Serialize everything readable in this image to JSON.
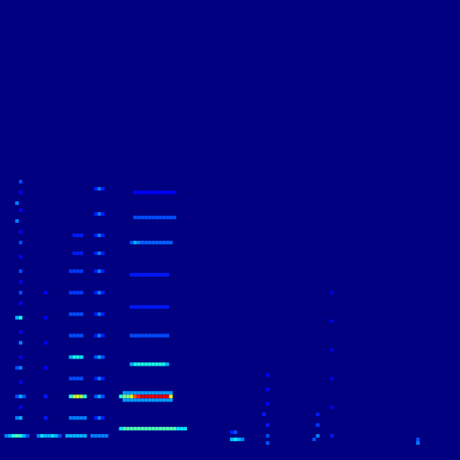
{
  "chart_data": {
    "type": "heatmap",
    "color": "jet",
    "color_range": [
      0,
      1
    ],
    "xlim": [
      -0.5,
      127.5
    ],
    "ylim": [
      -0.5,
      127.5
    ],
    "tick_labels": false,
    "grid": false,
    "cells": [
      [
        1,
        6,
        0.25
      ],
      [
        2,
        6,
        0.3
      ],
      [
        3,
        6,
        0.4
      ],
      [
        4,
        6,
        0.45
      ],
      [
        5,
        6,
        0.4
      ],
      [
        6,
        6,
        0.3
      ],
      [
        7,
        6,
        0.2
      ],
      [
        10,
        6,
        0.25
      ],
      [
        11,
        6,
        0.35
      ],
      [
        12,
        6,
        0.3
      ],
      [
        13,
        6,
        0.3
      ],
      [
        14,
        6,
        0.35
      ],
      [
        15,
        6,
        0.3
      ],
      [
        16,
        6,
        0.2
      ],
      [
        18,
        6,
        0.3
      ],
      [
        19,
        6,
        0.3
      ],
      [
        20,
        6,
        0.3
      ],
      [
        21,
        6,
        0.3
      ],
      [
        22,
        6,
        0.3
      ],
      [
        23,
        6,
        0.3
      ],
      [
        25,
        6,
        0.25
      ],
      [
        26,
        6,
        0.25
      ],
      [
        27,
        6,
        0.25
      ],
      [
        28,
        6,
        0.25
      ],
      [
        29,
        6,
        0.25
      ],
      [
        4,
        11,
        0.25
      ],
      [
        5,
        11,
        0.3
      ],
      [
        4,
        17,
        0.2
      ],
      [
        5,
        17,
        0.3
      ],
      [
        6,
        17,
        0.2
      ],
      [
        4,
        25,
        0.2
      ],
      [
        5,
        25,
        0.25
      ],
      [
        5,
        32,
        0.25
      ],
      [
        4,
        39,
        0.3
      ],
      [
        5,
        39,
        0.4
      ],
      [
        5,
        46,
        0.2
      ],
      [
        5,
        52,
        0.2
      ],
      [
        5,
        60,
        0.2
      ],
      [
        4,
        66,
        0.25
      ],
      [
        4,
        71,
        0.25
      ],
      [
        5,
        77,
        0.2
      ],
      [
        5,
        14,
        0.12
      ],
      [
        5,
        21,
        0.12
      ],
      [
        5,
        28,
        0.12
      ],
      [
        5,
        35,
        0.12
      ],
      [
        5,
        43,
        0.12
      ],
      [
        5,
        49,
        0.12
      ],
      [
        5,
        56,
        0.12
      ],
      [
        5,
        63,
        0.12
      ],
      [
        5,
        69,
        0.12
      ],
      [
        5,
        74,
        0.12
      ],
      [
        12,
        11,
        0.15
      ],
      [
        12,
        17,
        0.15
      ],
      [
        12,
        25,
        0.12
      ],
      [
        12,
        32,
        0.12
      ],
      [
        12,
        39,
        0.12
      ],
      [
        12,
        46,
        0.12
      ],
      [
        19,
        11,
        0.25
      ],
      [
        20,
        11,
        0.25
      ],
      [
        21,
        11,
        0.25
      ],
      [
        22,
        11,
        0.25
      ],
      [
        23,
        11,
        0.25
      ],
      [
        19,
        17,
        0.4
      ],
      [
        20,
        17,
        0.55
      ],
      [
        21,
        17,
        0.6
      ],
      [
        22,
        17,
        0.55
      ],
      [
        23,
        17,
        0.4
      ],
      [
        19,
        22,
        0.2
      ],
      [
        20,
        22,
        0.2
      ],
      [
        21,
        22,
        0.2
      ],
      [
        22,
        22,
        0.2
      ],
      [
        19,
        28,
        0.3
      ],
      [
        20,
        28,
        0.4
      ],
      [
        21,
        28,
        0.4
      ],
      [
        22,
        28,
        0.35
      ],
      [
        19,
        34,
        0.2
      ],
      [
        20,
        34,
        0.2
      ],
      [
        21,
        34,
        0.2
      ],
      [
        22,
        34,
        0.2
      ],
      [
        19,
        40,
        0.2
      ],
      [
        20,
        40,
        0.2
      ],
      [
        21,
        40,
        0.2
      ],
      [
        22,
        40,
        0.2
      ],
      [
        19,
        46,
        0.18
      ],
      [
        20,
        46,
        0.18
      ],
      [
        21,
        46,
        0.18
      ],
      [
        22,
        46,
        0.18
      ],
      [
        19,
        52,
        0.18
      ],
      [
        20,
        52,
        0.18
      ],
      [
        21,
        52,
        0.18
      ],
      [
        22,
        52,
        0.18
      ],
      [
        20,
        57,
        0.15
      ],
      [
        21,
        57,
        0.15
      ],
      [
        22,
        57,
        0.15
      ],
      [
        20,
        62,
        0.15
      ],
      [
        21,
        62,
        0.15
      ],
      [
        22,
        62,
        0.15
      ],
      [
        26,
        11,
        0.15
      ],
      [
        27,
        11,
        0.25
      ],
      [
        28,
        11,
        0.15
      ],
      [
        26,
        17,
        0.2
      ],
      [
        27,
        17,
        0.3
      ],
      [
        28,
        17,
        0.2
      ],
      [
        26,
        22,
        0.15
      ],
      [
        27,
        22,
        0.25
      ],
      [
        28,
        22,
        0.15
      ],
      [
        26,
        28,
        0.2
      ],
      [
        27,
        28,
        0.3
      ],
      [
        28,
        28,
        0.2
      ],
      [
        26,
        34,
        0.15
      ],
      [
        27,
        34,
        0.25
      ],
      [
        28,
        34,
        0.15
      ],
      [
        26,
        40,
        0.15
      ],
      [
        27,
        40,
        0.25
      ],
      [
        28,
        40,
        0.15
      ],
      [
        26,
        46,
        0.15
      ],
      [
        27,
        46,
        0.25
      ],
      [
        28,
        46,
        0.15
      ],
      [
        26,
        52,
        0.15
      ],
      [
        27,
        52,
        0.25
      ],
      [
        28,
        52,
        0.15
      ],
      [
        26,
        57,
        0.15
      ],
      [
        27,
        57,
        0.25
      ],
      [
        28,
        57,
        0.15
      ],
      [
        26,
        62,
        0.15
      ],
      [
        27,
        62,
        0.25
      ],
      [
        28,
        62,
        0.15
      ],
      [
        26,
        68,
        0.15
      ],
      [
        27,
        68,
        0.25
      ],
      [
        28,
        68,
        0.15
      ],
      [
        26,
        75,
        0.15
      ],
      [
        27,
        75,
        0.25
      ],
      [
        28,
        75,
        0.15
      ],
      [
        33,
        8,
        0.35
      ],
      [
        34,
        8,
        0.45
      ],
      [
        35,
        8,
        0.45
      ],
      [
        36,
        8,
        0.45
      ],
      [
        37,
        8,
        0.45
      ],
      [
        38,
        8,
        0.45
      ],
      [
        39,
        8,
        0.45
      ],
      [
        40,
        8,
        0.45
      ],
      [
        41,
        8,
        0.45
      ],
      [
        42,
        8,
        0.45
      ],
      [
        43,
        8,
        0.45
      ],
      [
        44,
        8,
        0.45
      ],
      [
        45,
        8,
        0.45
      ],
      [
        46,
        8,
        0.45
      ],
      [
        47,
        8,
        0.45
      ],
      [
        48,
        8,
        0.45
      ],
      [
        49,
        8,
        0.35
      ],
      [
        50,
        8,
        0.35
      ],
      [
        51,
        8,
        0.35
      ],
      [
        34,
        16,
        0.28
      ],
      [
        35,
        16,
        0.28
      ],
      [
        36,
        16,
        0.28
      ],
      [
        37,
        16,
        0.28
      ],
      [
        38,
        16,
        0.28
      ],
      [
        39,
        16,
        0.28
      ],
      [
        40,
        16,
        0.28
      ],
      [
        41,
        16,
        0.28
      ],
      [
        42,
        16,
        0.28
      ],
      [
        43,
        16,
        0.28
      ],
      [
        44,
        16,
        0.28
      ],
      [
        45,
        16,
        0.28
      ],
      [
        46,
        16,
        0.28
      ],
      [
        47,
        16,
        0.28
      ],
      [
        34,
        18,
        0.28
      ],
      [
        35,
        18,
        0.28
      ],
      [
        36,
        18,
        0.28
      ],
      [
        37,
        18,
        0.28
      ],
      [
        38,
        18,
        0.28
      ],
      [
        39,
        18,
        0.28
      ],
      [
        40,
        18,
        0.28
      ],
      [
        41,
        18,
        0.28
      ],
      [
        42,
        18,
        0.28
      ],
      [
        43,
        18,
        0.28
      ],
      [
        44,
        18,
        0.28
      ],
      [
        45,
        18,
        0.28
      ],
      [
        46,
        18,
        0.28
      ],
      [
        47,
        18,
        0.28
      ],
      [
        33,
        17,
        0.4
      ],
      [
        34,
        17,
        0.5
      ],
      [
        35,
        17,
        0.5
      ],
      [
        36,
        17,
        0.6
      ],
      [
        37,
        17,
        0.8
      ],
      [
        38,
        17,
        0.85
      ],
      [
        39,
        17,
        0.9
      ],
      [
        40,
        17,
        0.9
      ],
      [
        41,
        17,
        0.9
      ],
      [
        42,
        17,
        0.9
      ],
      [
        43,
        17,
        0.9
      ],
      [
        44,
        17,
        0.9
      ],
      [
        45,
        17,
        0.9
      ],
      [
        46,
        17,
        0.9
      ],
      [
        47,
        17,
        0.6
      ],
      [
        36,
        26,
        0.3
      ],
      [
        37,
        26,
        0.4
      ],
      [
        38,
        26,
        0.4
      ],
      [
        39,
        26,
        0.4
      ],
      [
        40,
        26,
        0.4
      ],
      [
        41,
        26,
        0.4
      ],
      [
        42,
        26,
        0.4
      ],
      [
        43,
        26,
        0.4
      ],
      [
        44,
        26,
        0.4
      ],
      [
        45,
        26,
        0.4
      ],
      [
        46,
        26,
        0.3
      ],
      [
        36,
        34,
        0.2
      ],
      [
        37,
        34,
        0.2
      ],
      [
        38,
        34,
        0.2
      ],
      [
        39,
        34,
        0.2
      ],
      [
        40,
        34,
        0.2
      ],
      [
        41,
        34,
        0.2
      ],
      [
        42,
        34,
        0.2
      ],
      [
        43,
        34,
        0.2
      ],
      [
        44,
        34,
        0.2
      ],
      [
        45,
        34,
        0.2
      ],
      [
        46,
        34,
        0.2
      ],
      [
        36,
        42,
        0.15
      ],
      [
        37,
        42,
        0.15
      ],
      [
        38,
        42,
        0.15
      ],
      [
        39,
        42,
        0.15
      ],
      [
        40,
        42,
        0.15
      ],
      [
        41,
        42,
        0.15
      ],
      [
        42,
        42,
        0.15
      ],
      [
        43,
        42,
        0.15
      ],
      [
        44,
        42,
        0.15
      ],
      [
        45,
        42,
        0.15
      ],
      [
        46,
        42,
        0.15
      ],
      [
        36,
        51,
        0.15
      ],
      [
        37,
        51,
        0.15
      ],
      [
        38,
        51,
        0.15
      ],
      [
        39,
        51,
        0.15
      ],
      [
        40,
        51,
        0.15
      ],
      [
        41,
        51,
        0.15
      ],
      [
        42,
        51,
        0.15
      ],
      [
        43,
        51,
        0.15
      ],
      [
        44,
        51,
        0.15
      ],
      [
        45,
        51,
        0.15
      ],
      [
        46,
        51,
        0.15
      ],
      [
        36,
        60,
        0.2
      ],
      [
        37,
        60,
        0.3
      ],
      [
        38,
        60,
        0.25
      ],
      [
        39,
        60,
        0.22
      ],
      [
        40,
        60,
        0.22
      ],
      [
        41,
        60,
        0.22
      ],
      [
        42,
        60,
        0.22
      ],
      [
        43,
        60,
        0.22
      ],
      [
        44,
        60,
        0.22
      ],
      [
        45,
        60,
        0.22
      ],
      [
        46,
        60,
        0.22
      ],
      [
        47,
        60,
        0.22
      ],
      [
        37,
        67,
        0.2
      ],
      [
        38,
        67,
        0.2
      ],
      [
        39,
        67,
        0.2
      ],
      [
        40,
        67,
        0.2
      ],
      [
        41,
        67,
        0.2
      ],
      [
        42,
        67,
        0.2
      ],
      [
        43,
        67,
        0.2
      ],
      [
        44,
        67,
        0.2
      ],
      [
        45,
        67,
        0.2
      ],
      [
        46,
        67,
        0.2
      ],
      [
        47,
        67,
        0.2
      ],
      [
        48,
        67,
        0.2
      ],
      [
        37,
        74,
        0.12
      ],
      [
        38,
        74,
        0.12
      ],
      [
        39,
        74,
        0.12
      ],
      [
        40,
        74,
        0.12
      ],
      [
        41,
        74,
        0.12
      ],
      [
        42,
        74,
        0.12
      ],
      [
        43,
        74,
        0.12
      ],
      [
        44,
        74,
        0.12
      ],
      [
        45,
        74,
        0.12
      ],
      [
        46,
        74,
        0.12
      ],
      [
        47,
        74,
        0.12
      ],
      [
        48,
        74,
        0.12
      ],
      [
        64,
        5,
        0.3
      ],
      [
        65,
        5,
        0.35
      ],
      [
        66,
        5,
        0.3
      ],
      [
        67,
        5,
        0.25
      ],
      [
        64,
        7,
        0.15
      ],
      [
        65,
        7,
        0.2
      ],
      [
        74,
        4,
        0.2
      ],
      [
        74,
        6,
        0.2
      ],
      [
        74,
        9,
        0.15
      ],
      [
        73,
        12,
        0.15
      ],
      [
        74,
        15,
        0.12
      ],
      [
        74,
        19,
        0.12
      ],
      [
        74,
        23,
        0.12
      ],
      [
        87,
        5,
        0.2
      ],
      [
        88,
        6,
        0.25
      ],
      [
        88,
        9,
        0.18
      ],
      [
        88,
        12,
        0.15
      ],
      [
        92,
        6,
        0.15
      ],
      [
        92,
        14,
        0.1
      ],
      [
        92,
        22,
        0.1
      ],
      [
        92,
        30,
        0.1
      ],
      [
        92,
        38,
        0.1
      ],
      [
        92,
        46,
        0.1
      ],
      [
        116,
        4,
        0.25
      ],
      [
        116,
        5,
        0.2
      ]
    ]
  }
}
